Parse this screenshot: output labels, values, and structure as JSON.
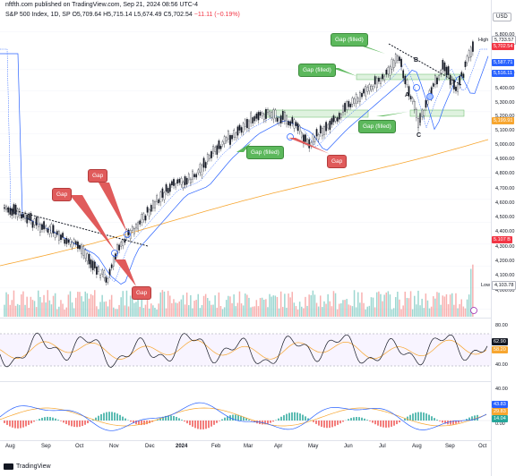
{
  "header": {
    "text": "nftfth.com published on TradingView.com, Sep 21, 2024 08:56 UTC-4"
  },
  "legend": {
    "symbol": "S&P 500 Index, 1D, SP",
    "open": "O5,709.64",
    "high": "H5,715.14",
    "low": "L5,674.49",
    "close": "C5,702.54",
    "change": "−11.11 (−0.19%)"
  },
  "price_axis": {
    "currency": "USD",
    "ticks": [
      "5,800.00",
      "5,600.00",
      "5,400.00",
      "5,300.00",
      "5,200.00",
      "5,100.00",
      "5,000.00",
      "4,900.00",
      "4,800.00",
      "4,700.00",
      "4,600.00",
      "4,500.00",
      "4,400.00",
      "4,300.00",
      "4,200.00",
      "4,100.00",
      "4,000.00"
    ],
    "high_label": "High",
    "high_value": "5,733.57",
    "last_price": "5,702.54",
    "ma1": "5,587.71",
    "ma2": "5,516.11",
    "ma3": "5,199.91",
    "volume": "5.107 B",
    "low_label": "Low",
    "low_value": "4,103.78"
  },
  "rsi_axis": {
    "ticks": [
      "80.00",
      "40.00"
    ],
    "rsi": "62.90",
    "rsi_ma": "58.20"
  },
  "macd_axis": {
    "ticks": [
      "40.00",
      "0.00"
    ],
    "v1": "43.83",
    "v2": "29.83",
    "v3": "14.04"
  },
  "xaxis": {
    "labels": [
      "Aug",
      "Sep",
      "Oct",
      "Nov",
      "Dec",
      "2024",
      "Feb",
      "Mar",
      "Apr",
      "May",
      "Jun",
      "Jul",
      "Aug",
      "Sep",
      "Oct"
    ]
  },
  "annotations": {
    "gap_labels": [
      "Gap",
      "Gap",
      "Gap",
      "Gap"
    ],
    "gap_filled": [
      "Gap (filled)",
      "Gap (filled)",
      "Gap (filled)",
      "Gap (filled)"
    ],
    "points": [
      "A",
      "B",
      "C"
    ]
  },
  "colors": {
    "up": "#26a69a",
    "down": "#ef5350",
    "ma_blue": "#2962ff",
    "ma_orange": "#f7a630"
  },
  "footer": {
    "brand": "TradingView"
  }
}
